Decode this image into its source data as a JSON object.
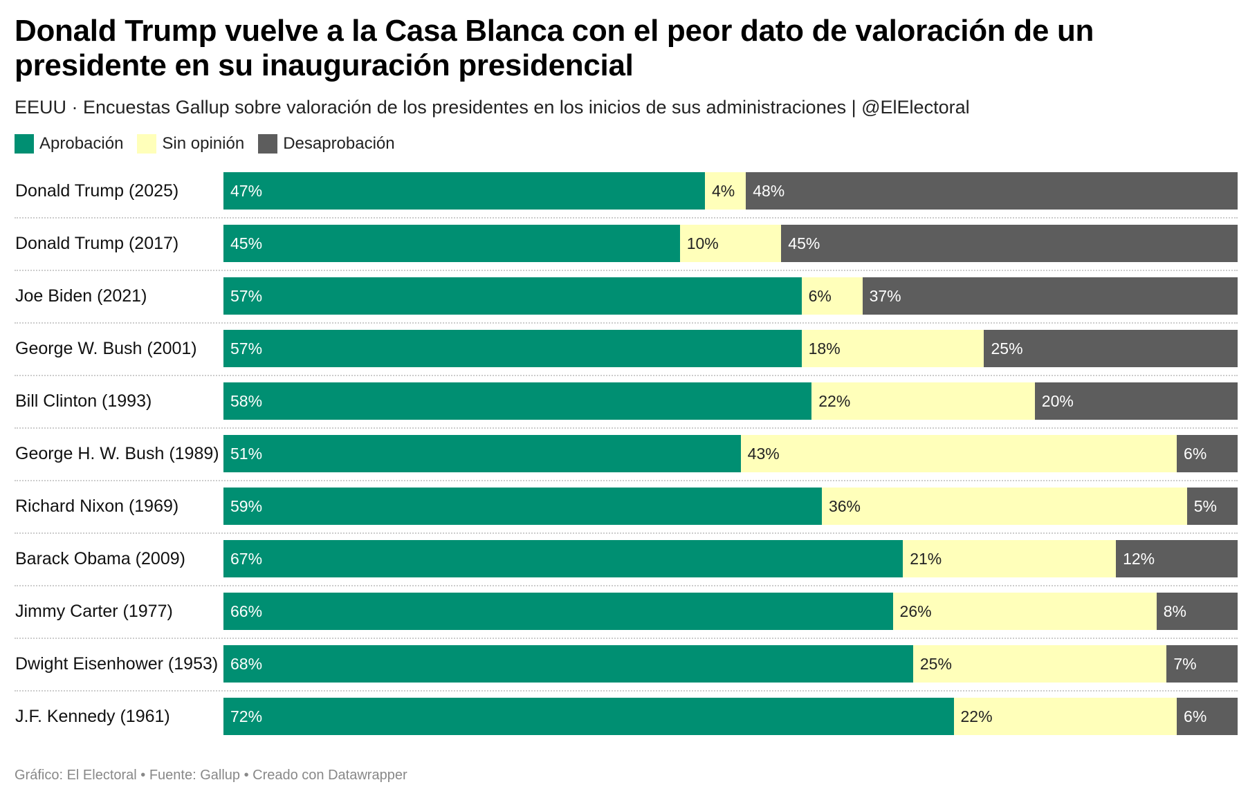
{
  "title": "Donald Trump vuelve a la Casa Blanca con el peor dato de valoración de un presidente en su inauguración presidencial",
  "subtitle": "EEUU · Encuestas Gallup sobre valoración de los presidentes en los inicios de sus administraciones | @ElElectoral",
  "footer": "Gráfico: El Electoral • Fuente: Gallup • Creado con Datawrapper",
  "colors": {
    "approve": "#008f72",
    "noopinion": "#ffffba",
    "disapprove": "#5d5d5d"
  },
  "chart_data": {
    "type": "bar",
    "stacked": true,
    "orientation": "horizontal",
    "legend_position": "top-left",
    "categories": [
      "Donald Trump (2025)",
      "Donald Trump (2017)",
      "Joe Biden (2021)",
      "George W. Bush (2001)",
      "Bill Clinton (1993)",
      "George H. W. Bush (1989)",
      "Richard Nixon (1969)",
      "Barack Obama (2009)",
      "Jimmy Carter (1977)",
      "Dwight Eisenhower (1953)",
      "J.F. Kennedy (1961)"
    ],
    "series": [
      {
        "name": "Aprobación",
        "key": "approve",
        "values": [
          47,
          45,
          57,
          57,
          58,
          51,
          59,
          67,
          66,
          68,
          72
        ]
      },
      {
        "name": "Sin opinión",
        "key": "noopinion",
        "values": [
          4,
          10,
          6,
          18,
          22,
          43,
          36,
          21,
          26,
          25,
          22
        ]
      },
      {
        "name": "Desaprobación",
        "key": "disapprove",
        "values": [
          48,
          45,
          37,
          25,
          20,
          6,
          5,
          12,
          8,
          7,
          6
        ]
      }
    ],
    "value_suffix": "%"
  }
}
